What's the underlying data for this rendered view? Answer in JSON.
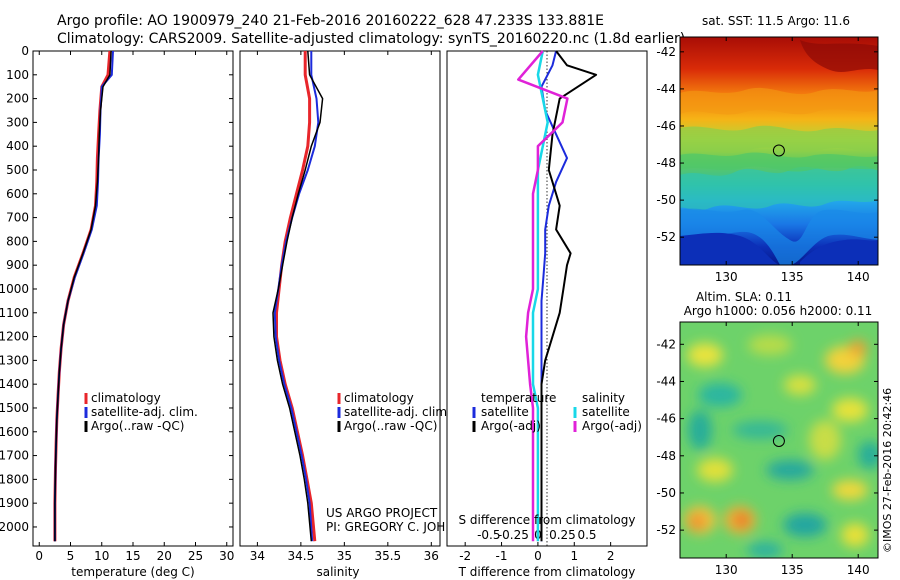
{
  "header": {
    "line1": "Argo profile: AO 1900979_240 21-Feb-2016 20160222_628 47.233S 133.881E",
    "line2": "Climatology: CARS2009. Satellite-adjusted climatology: synTS_20160220.nc (1.8d earlier)"
  },
  "credit": {
    "line1": "US ARGO PROJECT",
    "line2": "PI: GREGORY C. JOHNSON"
  },
  "imos_stamp": "©IMOS 27-Feb-2016 20:42:46",
  "colors": {
    "climatology": "#e8262b",
    "satellite": "#1c2bdc",
    "argo": "#000000",
    "sal_satellite": "#18d8e8",
    "sal_argo": "#e022d8"
  },
  "chart_data": [
    {
      "type": "line",
      "xlabel": "temperature (deg C)",
      "ylabel": "",
      "xlim": [
        -1,
        31
      ],
      "ylim": [
        2080,
        0
      ],
      "xticks": [
        "0",
        "5",
        "10",
        "15",
        "20",
        "25",
        "30"
      ],
      "yticks": [
        "0",
        "100",
        "200",
        "300",
        "400",
        "500",
        "600",
        "700",
        "800",
        "900",
        "1000",
        "1100",
        "1200",
        "1300",
        "1400",
        "1500",
        "1600",
        "1700",
        "1800",
        "1900",
        "2000"
      ],
      "legend": [
        "climatology",
        "satellite-adj. clim.",
        "Argo(..raw -QC)"
      ],
      "legend_position": "lower-right",
      "series": [
        {
          "name": "climatology",
          "color": "#e8262b",
          "x": [
            11.3,
            11.0,
            10.0,
            9.7,
            9.5,
            9.3,
            9.2,
            9.0,
            8.3,
            7.0,
            5.6,
            4.6,
            3.9,
            3.5,
            3.2,
            3.0,
            2.8,
            2.7,
            2.6,
            2.5,
            2.5
          ],
          "y": [
            0,
            100,
            150,
            250,
            350,
            450,
            550,
            650,
            750,
            850,
            950,
            1050,
            1150,
            1250,
            1350,
            1450,
            1550,
            1650,
            1750,
            1900,
            2060
          ]
        },
        {
          "name": "satellite-adj. clim.",
          "color": "#1c2bdc",
          "x": [
            11.8,
            11.6,
            10.0,
            9.8,
            9.7,
            9.5,
            9.4,
            9.2,
            8.4,
            7.1,
            5.7,
            4.6,
            3.9,
            3.5,
            3.2,
            3.0,
            2.8,
            2.7,
            2.6,
            2.5,
            2.5
          ],
          "y": [
            0,
            100,
            150,
            250,
            350,
            450,
            550,
            650,
            750,
            850,
            950,
            1050,
            1150,
            1250,
            1350,
            1450,
            1550,
            1650,
            1750,
            1900,
            2060
          ]
        },
        {
          "name": "Argo(..raw -QC)",
          "color": "#000000",
          "x": [
            11.5,
            11.3,
            10.2,
            9.8,
            9.6,
            9.5,
            9.3,
            9.0,
            8.3,
            7.0,
            5.6,
            4.6,
            3.9,
            3.5,
            3.2,
            3.0,
            2.8,
            2.7,
            2.6,
            2.5,
            2.5
          ],
          "y": [
            0,
            100,
            150,
            250,
            350,
            450,
            550,
            650,
            750,
            850,
            950,
            1050,
            1150,
            1250,
            1350,
            1450,
            1550,
            1650,
            1750,
            1900,
            2060
          ]
        }
      ]
    },
    {
      "type": "line",
      "xlabel": "salinity",
      "xlim": [
        33.8,
        36.1
      ],
      "ylim": [
        2080,
        0
      ],
      "xticks": [
        "34",
        "34.5",
        "35",
        "35.5",
        "36"
      ],
      "legend": [
        "climatology",
        "satellite-adj. clim.",
        "Argo(..raw -QC)"
      ],
      "legend_position": "lower-right",
      "series": [
        {
          "name": "climatology",
          "color": "#e8262b",
          "x": [
            34.55,
            34.55,
            34.6,
            34.6,
            34.58,
            34.52,
            34.45,
            34.38,
            34.32,
            34.28,
            34.25,
            34.22,
            34.22,
            34.26,
            34.32,
            34.4,
            34.46,
            34.52,
            34.57,
            34.62,
            34.66
          ],
          "y": [
            0,
            100,
            200,
            300,
            400,
            500,
            600,
            700,
            800,
            900,
            1000,
            1100,
            1200,
            1300,
            1400,
            1500,
            1600,
            1700,
            1800,
            1900,
            2060
          ]
        },
        {
          "name": "satellite-adj. clim.",
          "color": "#1c2bdc",
          "x": [
            34.62,
            34.62,
            34.68,
            34.7,
            34.66,
            34.58,
            34.48,
            34.4,
            34.33,
            34.28,
            34.24,
            34.2,
            34.21,
            34.25,
            34.31,
            34.39,
            34.45,
            34.51,
            34.56,
            34.6,
            34.63
          ],
          "y": [
            0,
            100,
            200,
            300,
            400,
            500,
            600,
            700,
            800,
            900,
            1000,
            1100,
            1200,
            1300,
            1400,
            1500,
            1600,
            1700,
            1800,
            1900,
            2060
          ]
        },
        {
          "name": "Argo(..raw -QC)",
          "color": "#000000",
          "x": [
            34.58,
            34.6,
            34.75,
            34.72,
            34.62,
            34.55,
            34.47,
            34.4,
            34.34,
            34.29,
            34.24,
            34.18,
            34.19,
            34.23,
            34.29,
            34.37,
            34.43,
            34.49,
            34.54,
            34.58,
            34.62
          ],
          "y": [
            0,
            100,
            200,
            300,
            400,
            500,
            600,
            700,
            800,
            900,
            1000,
            1100,
            1200,
            1300,
            1400,
            1500,
            1600,
            1700,
            1800,
            1900,
            2060
          ]
        }
      ]
    },
    {
      "type": "line",
      "xlabel": "T difference from climatology",
      "xlabel_top": "S difference from climatology",
      "xlim": [
        -2.5,
        3.0
      ],
      "ylim": [
        2080,
        0
      ],
      "xticks": [
        "-2",
        "-1",
        "0",
        "1",
        "2"
      ],
      "s_xticks": [
        "-0.5",
        "-0.25",
        "0",
        "0.25",
        "0.5"
      ],
      "legend_headers": [
        "temperature",
        "salinity"
      ],
      "legend": [
        "satellite",
        "Argo(-adj)",
        "satellite",
        "Argo(-adj)"
      ],
      "legend_position": "lower-center",
      "series": [
        {
          "name": "satellite",
          "color": "#1c2bdc",
          "x": [
            0.5,
            0.4,
            0.1,
            0.2,
            0.5,
            0.8,
            0.5,
            0.3,
            0.2,
            0.2,
            0.15,
            0.1,
            0.1,
            0.1,
            0.1,
            0.1,
            0.1,
            0.1,
            0.1,
            0.1,
            0.1
          ],
          "y": [
            0,
            60,
            150,
            250,
            350,
            450,
            550,
            650,
            750,
            850,
            950,
            1050,
            1150,
            1250,
            1350,
            1450,
            1550,
            1650,
            1750,
            1900,
            2060
          ]
        },
        {
          "name": "Argo(-adj)",
          "color": "#000000",
          "x": [
            0.5,
            0.8,
            1.6,
            0.6,
            0.4,
            0.3,
            0.6,
            0.5,
            0.9,
            0.8,
            0.7,
            0.6,
            0.4,
            0.2,
            0.1,
            0.1,
            0.1,
            0.1,
            0.1,
            0.1,
            0.1
          ],
          "y": [
            0,
            60,
            100,
            200,
            350,
            500,
            650,
            750,
            850,
            900,
            1000,
            1100,
            1200,
            1300,
            1400,
            1500,
            1600,
            1700,
            1800,
            1900,
            2060
          ]
        },
        {
          "name": "satellite",
          "color": "#18d8e8",
          "x": [
            0.05,
            0.0,
            0.05,
            0.1,
            0.05,
            0.0,
            0.0,
            0.0,
            0.0,
            0.0,
            0.0,
            -0.05,
            -0.05,
            -0.05,
            -0.05,
            0.0,
            0.0,
            0.0,
            0.0,
            0.0,
            0.0
          ],
          "y": [
            0,
            100,
            200,
            300,
            400,
            500,
            600,
            700,
            800,
            900,
            1000,
            1100,
            1200,
            1300,
            1400,
            1500,
            1600,
            1700,
            1800,
            1900,
            2060
          ]
        },
        {
          "name": "Argo(-adj)",
          "color": "#e022d8",
          "x": [
            0.05,
            -0.2,
            0.3,
            0.25,
            0.0,
            0.0,
            -0.05,
            -0.05,
            -0.05,
            -0.05,
            -0.05,
            -0.1,
            -0.12,
            -0.1,
            -0.08,
            -0.05,
            -0.05,
            -0.05,
            -0.05,
            -0.05,
            -0.05
          ],
          "y": [
            0,
            120,
            200,
            300,
            400,
            500,
            600,
            700,
            800,
            900,
            1000,
            1100,
            1200,
            1300,
            1400,
            1500,
            1600,
            1700,
            1800,
            1900,
            2060
          ]
        }
      ]
    },
    {
      "type": "heatmap",
      "title": "sat. SST: 11.5 Argo: 11.6",
      "xlim": [
        126.5,
        141.5
      ],
      "ylim": [
        -53.5,
        -41.2
      ],
      "xticks": [
        "130",
        "135",
        "140"
      ],
      "yticks": [
        "-42",
        "-44",
        "-46",
        "-48",
        "-50",
        "-52"
      ],
      "marker": {
        "lon": 133.881,
        "lat": -47.233
      }
    },
    {
      "type": "heatmap",
      "title": "Altim. SLA: 0.11",
      "subtitle": "Argo h1000: 0.056 h2000: 0.11",
      "xlim": [
        126.5,
        141.5
      ],
      "ylim": [
        -53.5,
        -40.8
      ],
      "xticks": [
        "130",
        "135",
        "140"
      ],
      "yticks": [
        "-42",
        "-44",
        "-46",
        "-48",
        "-50",
        "-52"
      ],
      "marker": {
        "lon": 133.881,
        "lat": -47.233
      }
    }
  ]
}
